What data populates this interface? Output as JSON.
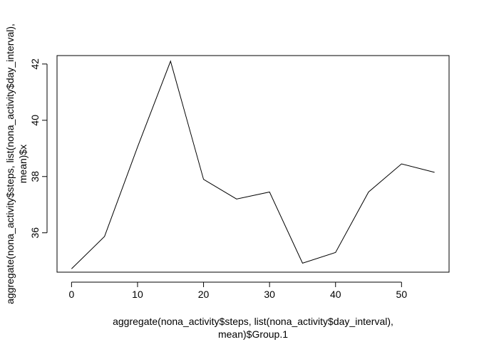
{
  "chart_data": {
    "type": "line",
    "title": "",
    "xlabel": [
      "aggregate(nona_activity$steps, list(nona_activity$day_interval),",
      "mean)$Group.1"
    ],
    "ylabel": [
      "aggregate(nona_activity$steps, list(nona_activity$day_interval),",
      "mean)$x"
    ],
    "xlim": [
      -2.2,
      57.2
    ],
    "ylim": [
      34.6,
      42.3
    ],
    "xticks": [
      0,
      10,
      20,
      30,
      40,
      50
    ],
    "yticks": [
      36,
      38,
      40,
      42
    ],
    "grid": false,
    "series": [
      {
        "x": [
          0,
          5,
          10,
          15,
          20,
          25,
          30,
          35,
          40,
          45,
          50,
          55
        ],
        "y": [
          34.72,
          35.87,
          39.05,
          42.1,
          37.9,
          37.2,
          37.45,
          34.92,
          35.3,
          37.45,
          38.45,
          38.15
        ]
      }
    ]
  }
}
